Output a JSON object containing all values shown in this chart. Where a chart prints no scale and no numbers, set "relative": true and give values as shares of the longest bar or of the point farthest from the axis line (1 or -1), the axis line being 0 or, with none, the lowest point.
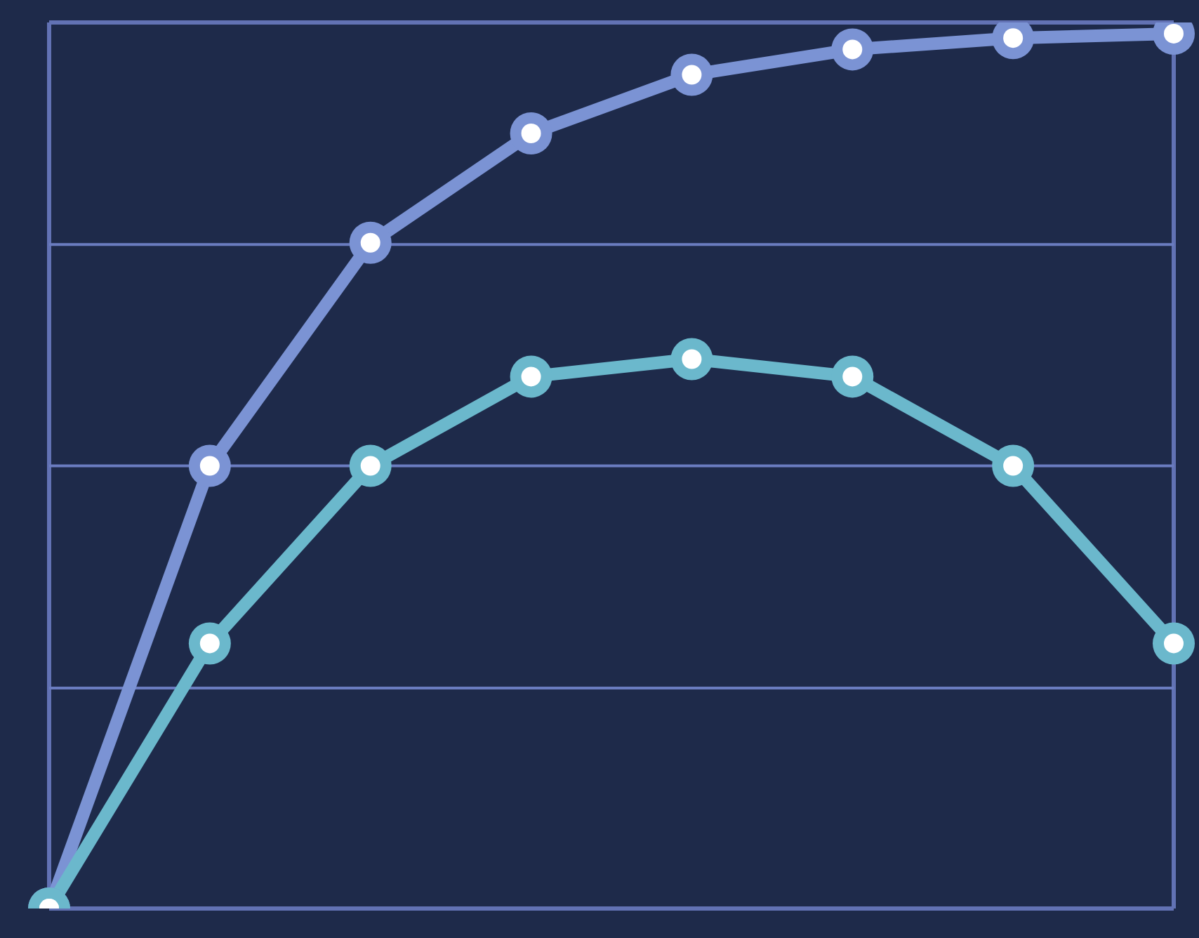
{
  "chart_data": {
    "type": "line",
    "relative": true,
    "categories": [
      null,
      null,
      null,
      null,
      null,
      null,
      null,
      null
    ],
    "series": [
      {
        "color": "#7b93d4",
        "values": [
          0,
          0.506,
          0.761,
          0.886,
          0.953,
          0.982,
          0.995,
          1
        ]
      },
      {
        "color": "#6bb8cc",
        "values": [
          0,
          0.303,
          0.506,
          0.608,
          0.628,
          0.608,
          0.506,
          0.303
        ]
      }
    ],
    "ref_lines": [
      {
        "axis": "y",
        "value": 0.252,
        "color": "#6a7cc0"
      },
      {
        "axis": "y",
        "value": 0.506,
        "color": "#6a7cc0"
      },
      {
        "axis": "y",
        "value": 0.759,
        "color": "#6a7cc0"
      }
    ],
    "marker": "circle",
    "line_style": "solid"
  }
}
